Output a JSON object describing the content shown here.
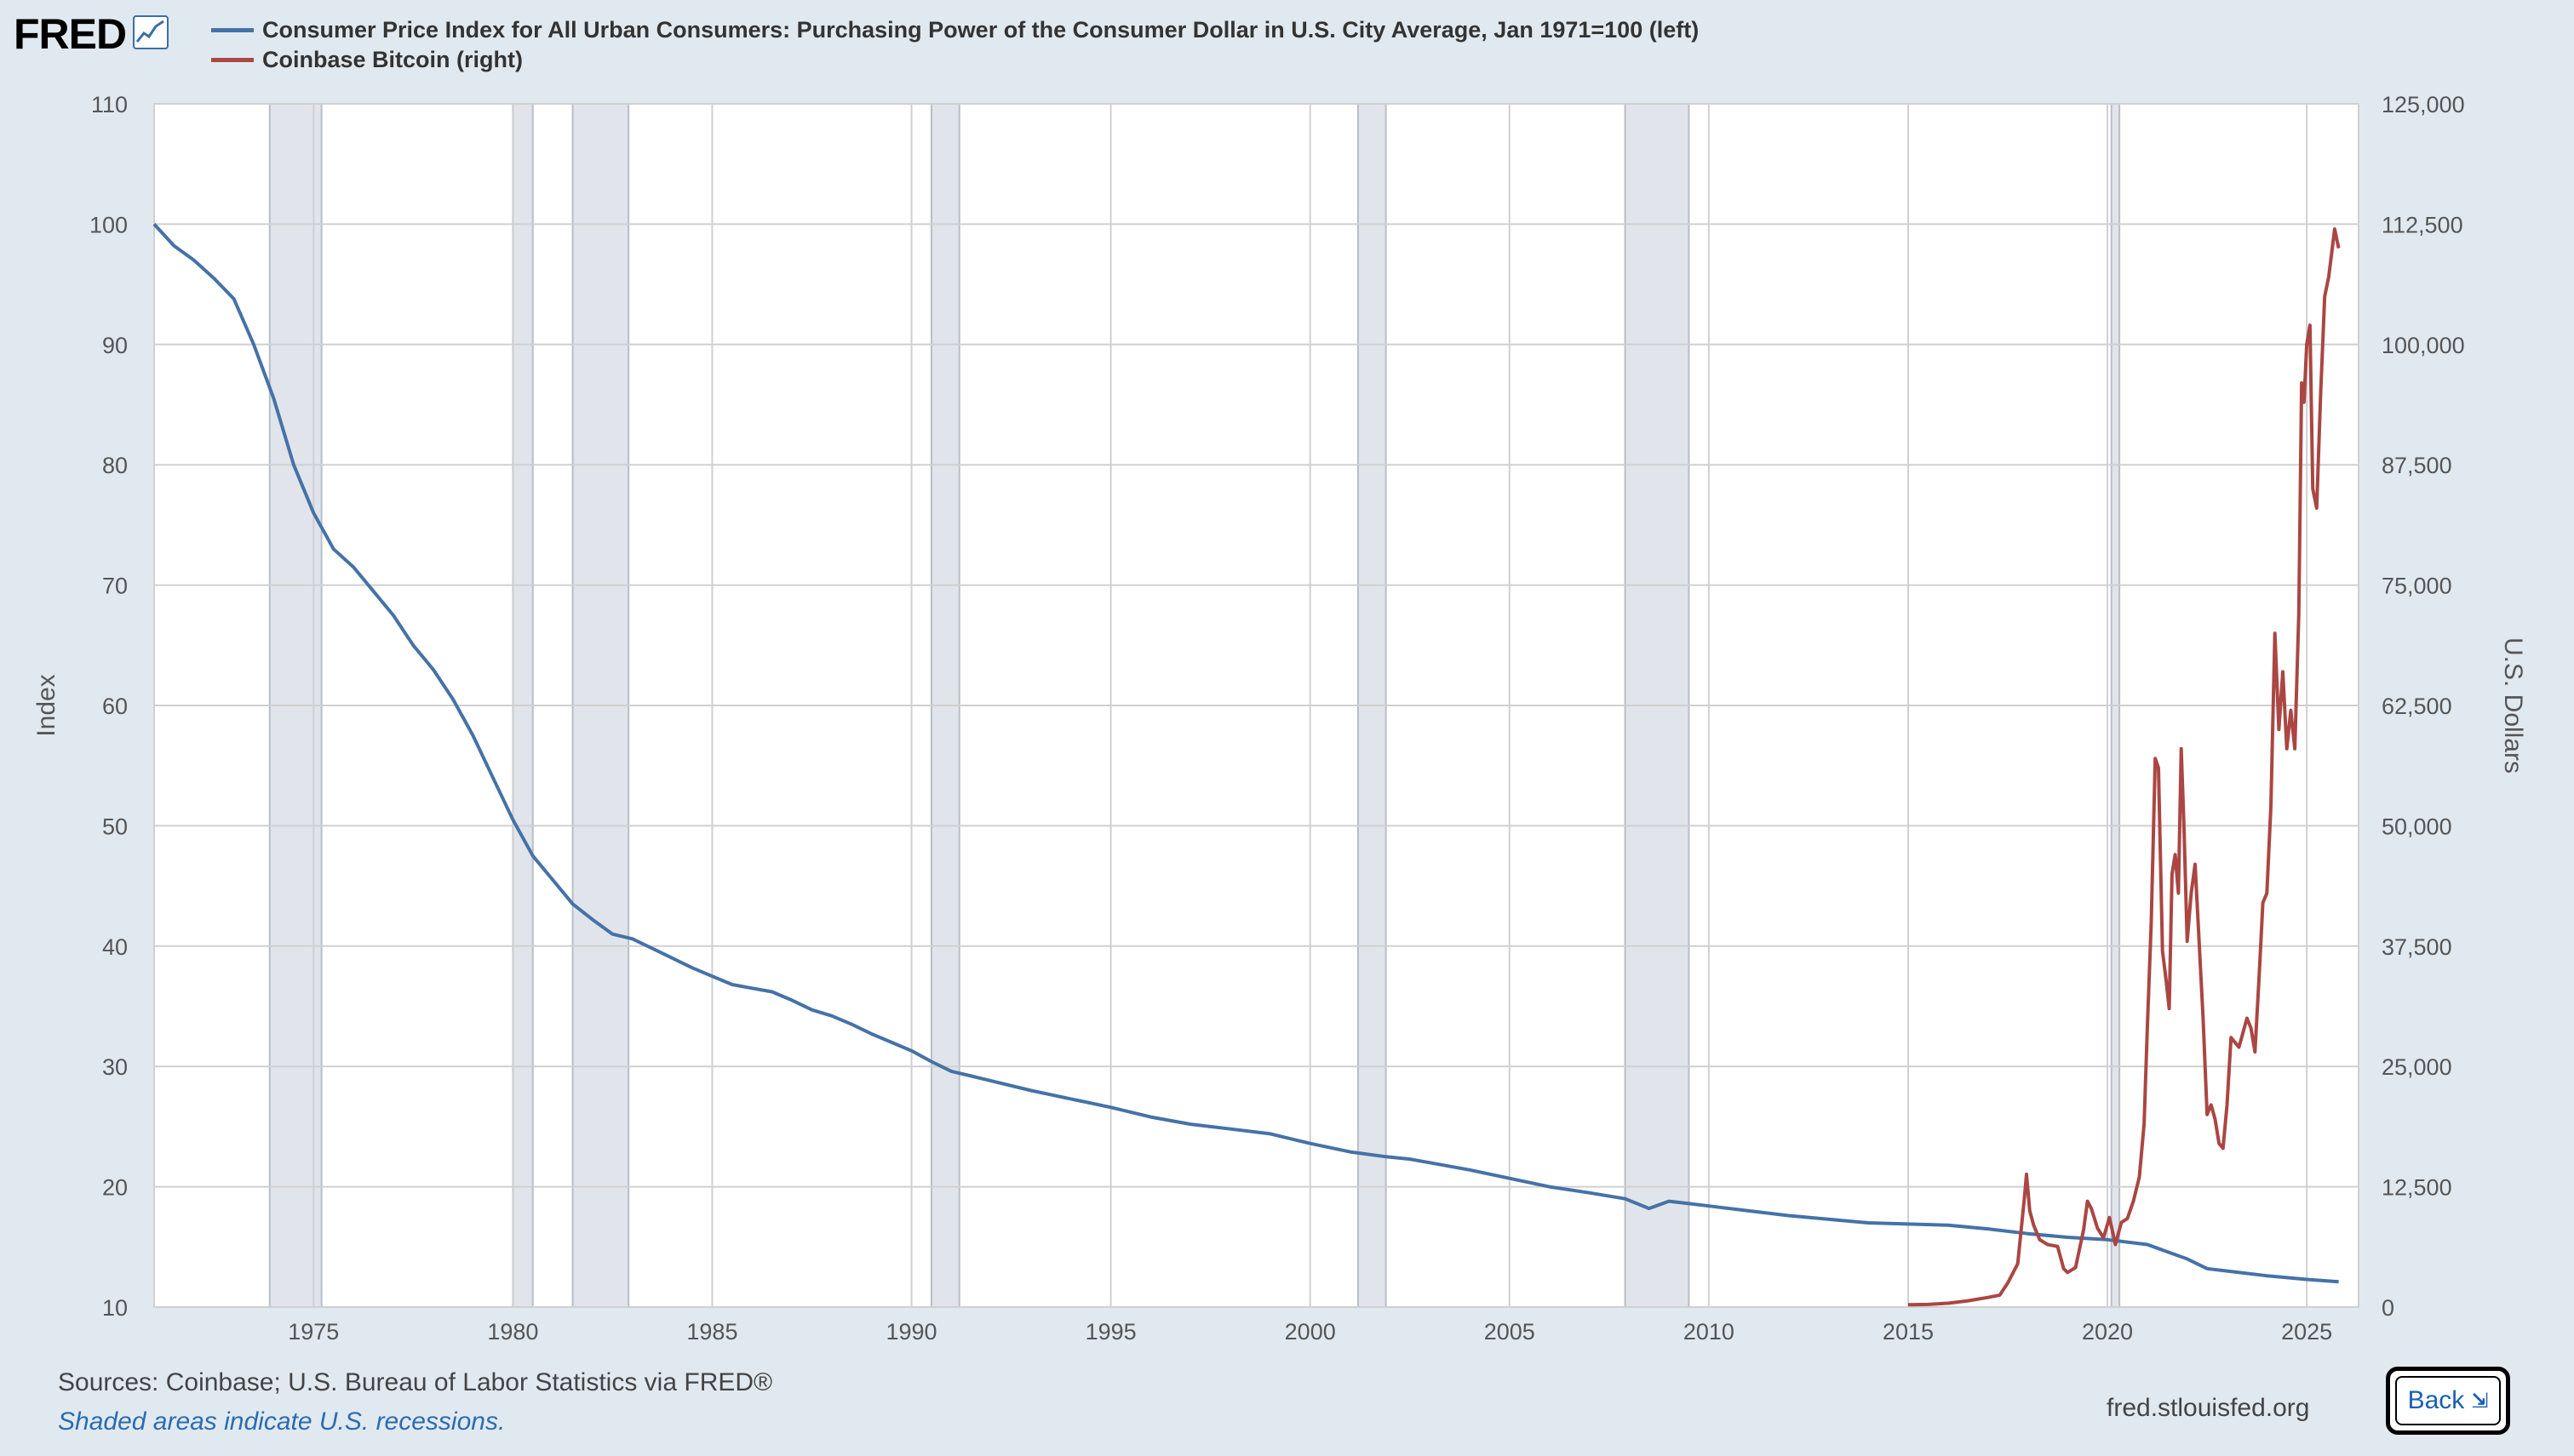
{
  "header": {
    "logo_text": "FRED",
    "logo_icon": "chart-line-icon"
  },
  "legend": [
    {
      "label": "Consumer Price Index for All Urban Consumers: Purchasing Power of the Consumer Dollar in U.S. City Average, Jan 1971=100 (left)",
      "color": "#4572a7"
    },
    {
      "label": "Coinbase Bitcoin (right)",
      "color": "#aa4643"
    }
  ],
  "chart_data": {
    "type": "line",
    "title": "",
    "xlim": [
      1971.0,
      2026.3
    ],
    "x_ticks": [
      "1975",
      "1980",
      "1985",
      "1990",
      "1995",
      "2000",
      "2005",
      "2010",
      "2015",
      "2020",
      "2025"
    ],
    "left_axis": {
      "label": "Index",
      "ylim": [
        10,
        110
      ],
      "ticks": [
        "10",
        "20",
        "30",
        "40",
        "50",
        "60",
        "70",
        "80",
        "90",
        "100",
        "110"
      ]
    },
    "right_axis": {
      "label": "U.S. Dollars",
      "ylim": [
        0,
        125000
      ],
      "ticks": [
        "0",
        "12,500",
        "25,000",
        "37,500",
        "50,000",
        "62,500",
        "75,000",
        "87,500",
        "100,000",
        "112,500",
        "125,000"
      ]
    },
    "grid": true,
    "recessions": [
      [
        1973.9,
        1975.2
      ],
      [
        1980.0,
        1980.5
      ],
      [
        1981.5,
        1982.9
      ],
      [
        1990.5,
        1991.2
      ],
      [
        2001.2,
        2001.9
      ],
      [
        2007.9,
        2009.5
      ],
      [
        2020.1,
        2020.3
      ]
    ],
    "series": [
      {
        "name": "Consumer Price Index for All Urban Consumers: Purchasing Power of the Consumer Dollar in U.S. City Average, Jan 1971=100 (left)",
        "color": "#4572a7",
        "axis": "left",
        "points": [
          [
            1971.0,
            100
          ],
          [
            1971.5,
            98.2
          ],
          [
            1972.0,
            97
          ],
          [
            1972.5,
            95.5
          ],
          [
            1973.0,
            93.8
          ],
          [
            1973.5,
            90
          ],
          [
            1974.0,
            85.5
          ],
          [
            1974.5,
            80
          ],
          [
            1975.0,
            76
          ],
          [
            1975.5,
            73
          ],
          [
            1976.0,
            71.5
          ],
          [
            1976.5,
            69.5
          ],
          [
            1977.0,
            67.5
          ],
          [
            1977.5,
            65
          ],
          [
            1978.0,
            63
          ],
          [
            1978.5,
            60.5
          ],
          [
            1979.0,
            57.5
          ],
          [
            1979.5,
            54
          ],
          [
            1980.0,
            50.5
          ],
          [
            1980.5,
            47.5
          ],
          [
            1981.0,
            45.5
          ],
          [
            1981.5,
            43.5
          ],
          [
            1982.0,
            42.2
          ],
          [
            1982.5,
            41
          ],
          [
            1983.0,
            40.6
          ],
          [
            1983.5,
            39.8
          ],
          [
            1984.0,
            39
          ],
          [
            1984.5,
            38.2
          ],
          [
            1985.0,
            37.5
          ],
          [
            1985.5,
            36.8
          ],
          [
            1986.0,
            36.5
          ],
          [
            1986.5,
            36.2
          ],
          [
            1987.0,
            35.5
          ],
          [
            1987.5,
            34.7
          ],
          [
            1988.0,
            34.2
          ],
          [
            1988.5,
            33.5
          ],
          [
            1989.0,
            32.7
          ],
          [
            1989.5,
            32.0
          ],
          [
            1990.0,
            31.3
          ],
          [
            1990.5,
            30.4
          ],
          [
            1991.0,
            29.6
          ],
          [
            1991.5,
            29.2
          ],
          [
            1992.0,
            28.8
          ],
          [
            1993.0,
            28.0
          ],
          [
            1994.0,
            27.3
          ],
          [
            1995.0,
            26.6
          ],
          [
            1996.0,
            25.8
          ],
          [
            1997.0,
            25.2
          ],
          [
            1998.0,
            24.8
          ],
          [
            1999.0,
            24.4
          ],
          [
            2000.0,
            23.6
          ],
          [
            2001.0,
            22.9
          ],
          [
            2001.9,
            22.5
          ],
          [
            2002.5,
            22.3
          ],
          [
            2003.0,
            22.0
          ],
          [
            2004.0,
            21.4
          ],
          [
            2005.0,
            20.7
          ],
          [
            2006.0,
            20.0
          ],
          [
            2007.0,
            19.5
          ],
          [
            2007.9,
            19.0
          ],
          [
            2008.5,
            18.2
          ],
          [
            2009.0,
            18.8
          ],
          [
            2009.5,
            18.6
          ],
          [
            2010.0,
            18.4
          ],
          [
            2011.0,
            18.0
          ],
          [
            2012.0,
            17.6
          ],
          [
            2013.0,
            17.3
          ],
          [
            2014.0,
            17.0
          ],
          [
            2015.0,
            16.9
          ],
          [
            2016.0,
            16.8
          ],
          [
            2017.0,
            16.5
          ],
          [
            2018.0,
            16.1
          ],
          [
            2019.0,
            15.8
          ],
          [
            2020.0,
            15.6
          ],
          [
            2021.0,
            15.2
          ],
          [
            2021.5,
            14.6
          ],
          [
            2022.0,
            14.0
          ],
          [
            2022.5,
            13.2
          ],
          [
            2023.0,
            13.0
          ],
          [
            2024.0,
            12.6
          ],
          [
            2025.0,
            12.3
          ],
          [
            2025.8,
            12.1
          ]
        ]
      },
      {
        "name": "Coinbase Bitcoin (right)",
        "color": "#aa4643",
        "axis": "right",
        "points": [
          [
            2015.0,
            250
          ],
          [
            2015.5,
            270
          ],
          [
            2016.0,
            400
          ],
          [
            2016.5,
            650
          ],
          [
            2017.0,
            1000
          ],
          [
            2017.3,
            1250
          ],
          [
            2017.5,
            2500
          ],
          [
            2017.75,
            4500
          ],
          [
            2017.92,
            11500
          ],
          [
            2017.97,
            13800
          ],
          [
            2018.05,
            10000
          ],
          [
            2018.15,
            8500
          ],
          [
            2018.3,
            7000
          ],
          [
            2018.5,
            6500
          ],
          [
            2018.75,
            6300
          ],
          [
            2018.9,
            4000
          ],
          [
            2019.0,
            3600
          ],
          [
            2019.2,
            4100
          ],
          [
            2019.4,
            8000
          ],
          [
            2019.5,
            11000
          ],
          [
            2019.6,
            10200
          ],
          [
            2019.75,
            8200
          ],
          [
            2019.9,
            7200
          ],
          [
            2020.05,
            9300
          ],
          [
            2020.2,
            6500
          ],
          [
            2020.35,
            8800
          ],
          [
            2020.5,
            9200
          ],
          [
            2020.65,
            11000
          ],
          [
            2020.8,
            13500
          ],
          [
            2020.92,
            19000
          ],
          [
            2021.0,
            29000
          ],
          [
            2021.1,
            40000
          ],
          [
            2021.2,
            57000
          ],
          [
            2021.28,
            56000
          ],
          [
            2021.38,
            37000
          ],
          [
            2021.47,
            34000
          ],
          [
            2021.55,
            31000
          ],
          [
            2021.62,
            45000
          ],
          [
            2021.7,
            47000
          ],
          [
            2021.78,
            43000
          ],
          [
            2021.85,
            58000
          ],
          [
            2021.92,
            50000
          ],
          [
            2022.0,
            38000
          ],
          [
            2022.1,
            43000
          ],
          [
            2022.2,
            46000
          ],
          [
            2022.3,
            38000
          ],
          [
            2022.4,
            30000
          ],
          [
            2022.5,
            20000
          ],
          [
            2022.6,
            21000
          ],
          [
            2022.7,
            19500
          ],
          [
            2022.8,
            17000
          ],
          [
            2022.9,
            16500
          ],
          [
            2023.0,
            21000
          ],
          [
            2023.1,
            28000
          ],
          [
            2023.3,
            27000
          ],
          [
            2023.5,
            30000
          ],
          [
            2023.6,
            29000
          ],
          [
            2023.7,
            26500
          ],
          [
            2023.8,
            34000
          ],
          [
            2023.9,
            42000
          ],
          [
            2024.0,
            43000
          ],
          [
            2024.1,
            52000
          ],
          [
            2024.2,
            70000
          ],
          [
            2024.3,
            60000
          ],
          [
            2024.4,
            66000
          ],
          [
            2024.5,
            58000
          ],
          [
            2024.6,
            62000
          ],
          [
            2024.7,
            58000
          ],
          [
            2024.8,
            72000
          ],
          [
            2024.87,
            96000
          ],
          [
            2024.93,
            94000
          ],
          [
            2025.0,
            100000
          ],
          [
            2025.08,
            102000
          ],
          [
            2025.15,
            85000
          ],
          [
            2025.25,
            83000
          ],
          [
            2025.35,
            95000
          ],
          [
            2025.45,
            105000
          ],
          [
            2025.55,
            107000
          ],
          [
            2025.7,
            112000
          ],
          [
            2025.8,
            110000
          ]
        ]
      }
    ]
  },
  "footer": {
    "sources": "Sources: Coinbase; U.S. Bureau of Labor Statistics via FRED®",
    "shaded_note": "Shaded areas indicate U.S. recessions.",
    "site": "fred.stlouisfed.org",
    "back_label": "Back",
    "back_icon": "collapse-icon"
  }
}
